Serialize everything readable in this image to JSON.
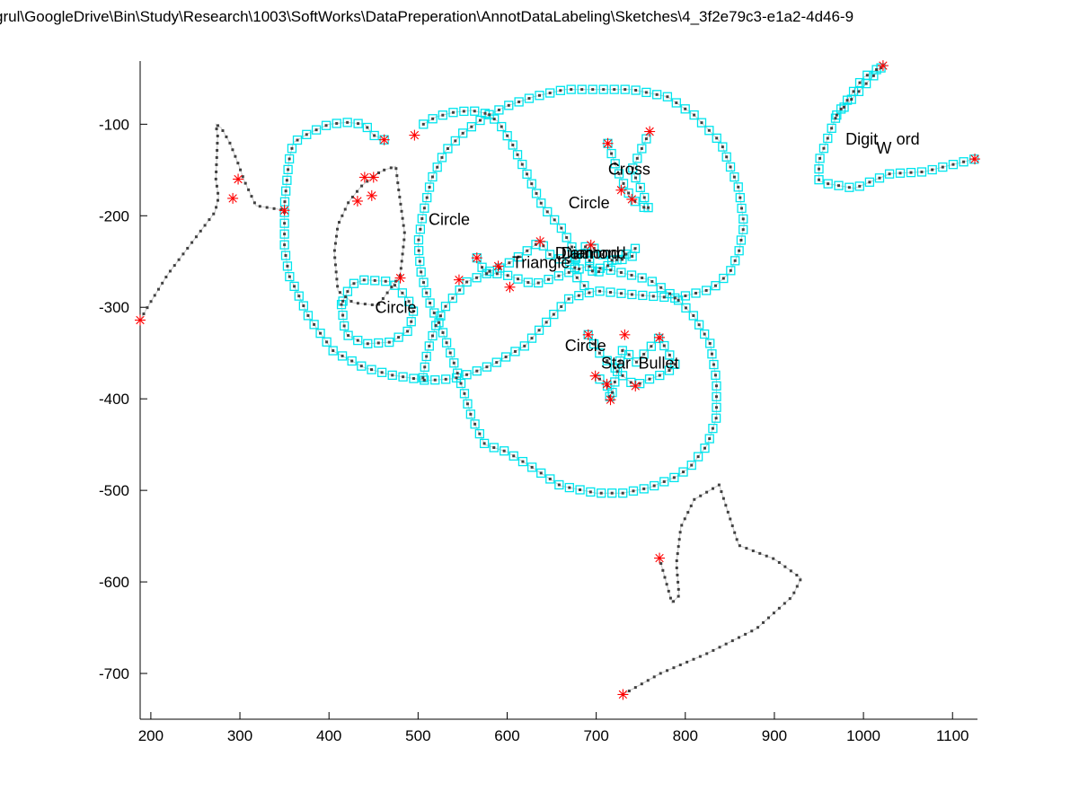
{
  "chart_data": {
    "type": "scatter",
    "title": "grul\\GoogleDrive\\Bin\\Study\\Research\\1003\\SoftWorks\\DataPreperation\\AnnotDataLabeling\\Sketches\\4_3f2e79c3-e1a2-4d46-9",
    "xlim": [
      188,
      1128
    ],
    "ylim": [
      -750,
      -31
    ],
    "x_ticks": [
      200,
      300,
      400,
      500,
      600,
      700,
      800,
      900,
      1000,
      1100
    ],
    "y_ticks": [
      -100,
      -200,
      -300,
      -400,
      -500,
      -600,
      -700
    ],
    "grid": false,
    "colors": {
      "points": "#404040",
      "boxes": "#00e5ee",
      "stars": "#ff0000",
      "line": "#c8c8c8"
    },
    "annotations": [
      {
        "text": "Circle",
        "x": 535,
        "y": -210
      },
      {
        "text": "Circle",
        "x": 475,
        "y": -306
      },
      {
        "text": "Circle",
        "x": 692,
        "y": -192
      },
      {
        "text": "Circle",
        "x": 688,
        "y": -348
      },
      {
        "text": "Cross",
        "x": 737,
        "y": -155
      },
      {
        "text": "Triangle",
        "x": 638,
        "y": -257
      },
      {
        "text": "Diamond",
        "x": 690,
        "y": -247
      },
      {
        "text": "Diamond",
        "x": 697,
        "y": -247
      },
      {
        "text": "Star",
        "x": 722,
        "y": -367
      },
      {
        "text": "Bullet",
        "x": 770,
        "y": -367
      },
      {
        "text": "Digit",
        "x": 998,
        "y": -122
      },
      {
        "text": "ord",
        "x": 1050,
        "y": -122
      }
    ],
    "subscript_annotations": [
      {
        "text": "W",
        "x": 1023,
        "y": -132
      }
    ],
    "star_markers": [
      [
        1022,
        -36
      ],
      [
        1125,
        -138
      ],
      [
        462,
        -117
      ],
      [
        496,
        -112
      ],
      [
        440,
        -158
      ],
      [
        450,
        -158
      ],
      [
        298,
        -160
      ],
      [
        292,
        -181
      ],
      [
        432,
        -184
      ],
      [
        448,
        -178
      ],
      [
        350,
        -194
      ],
      [
        188,
        -314
      ],
      [
        566,
        -246
      ],
      [
        546,
        -270
      ],
      [
        603,
        -278
      ],
      [
        637,
        -228
      ],
      [
        590,
        -255
      ],
      [
        713,
        -121
      ],
      [
        694,
        -232
      ],
      [
        728,
        -172
      ],
      [
        760,
        -108
      ],
      [
        740,
        -182
      ],
      [
        691,
        -330
      ],
      [
        699,
        -375
      ],
      [
        732,
        -330
      ],
      [
        712,
        -384
      ],
      [
        771,
        -333
      ],
      [
        716,
        -401
      ],
      [
        744,
        -386
      ],
      [
        730,
        -723
      ],
      [
        771,
        -574
      ],
      [
        480,
        -268
      ]
    ],
    "unboxed_strokes": [
      [
        [
          188,
          -314
        ],
        [
          198,
          -297
        ],
        [
          219,
          -264
        ],
        [
          272,
          -196
        ],
        [
          276,
          -180
        ],
        [
          273,
          -160
        ],
        [
          275,
          -113
        ],
        [
          273,
          -100
        ],
        [
          279,
          -104
        ],
        [
          289,
          -121
        ],
        [
          298,
          -143
        ],
        [
          305,
          -162
        ],
        [
          318,
          -189
        ],
        [
          350,
          -194
        ]
      ],
      [
        [
          462,
          -150
        ],
        [
          475,
          -146
        ],
        [
          478,
          -170
        ],
        [
          485,
          -220
        ],
        [
          480,
          -265
        ],
        [
          455,
          -298
        ],
        [
          427,
          -295
        ],
        [
          410,
          -282
        ],
        [
          406,
          -240
        ],
        [
          410,
          -210
        ],
        [
          422,
          -185
        ],
        [
          436,
          -168
        ],
        [
          452,
          -155
        ],
        [
          462,
          -150
        ]
      ],
      [
        [
          730,
          -723
        ],
        [
          772,
          -700
        ],
        [
          825,
          -678
        ],
        [
          880,
          -651
        ],
        [
          920,
          -616
        ],
        [
          930,
          -596
        ],
        [
          900,
          -575
        ],
        [
          860,
          -560
        ],
        [
          838,
          -494
        ],
        [
          810,
          -510
        ],
        [
          795,
          -540
        ],
        [
          790,
          -580
        ],
        [
          793,
          -615
        ],
        [
          785,
          -623
        ],
        [
          771,
          -574
        ]
      ]
    ],
    "boxed_strokes": [
      [
        [
          970,
          -90
        ],
        [
          1022,
          -36
        ],
        [
          1000,
          -49
        ],
        [
          970,
          -90
        ],
        [
          950,
          -140
        ],
        [
          950,
          -162
        ],
        [
          960,
          -165
        ],
        [
          990,
          -170
        ],
        [
          1030,
          -154
        ],
        [
          1068,
          -152
        ],
        [
          1125,
          -138
        ]
      ],
      [
        [
          462,
          -117
        ],
        [
          450,
          -112
        ],
        [
          440,
          -100
        ],
        [
          420,
          -98
        ],
        [
          400,
          -100
        ],
        [
          377,
          -110
        ],
        [
          360,
          -120
        ],
        [
          355,
          -140
        ],
        [
          350,
          -188
        ],
        [
          350,
          -235
        ],
        [
          355,
          -265
        ],
        [
          365,
          -285
        ],
        [
          377,
          -310
        ],
        [
          387,
          -324
        ],
        [
          405,
          -348
        ],
        [
          440,
          -366
        ],
        [
          470,
          -374
        ],
        [
          510,
          -380
        ],
        [
          540,
          -378
        ],
        [
          560,
          -372
        ],
        [
          585,
          -362
        ],
        [
          620,
          -342
        ],
        [
          650,
          -310
        ],
        [
          670,
          -290
        ],
        [
          700,
          -282
        ],
        [
          740,
          -286
        ],
        [
          790,
          -290
        ],
        [
          830,
          -280
        ],
        [
          850,
          -262
        ],
        [
          860,
          -240
        ],
        [
          866,
          -210
        ],
        [
          860,
          -170
        ],
        [
          840,
          -120
        ],
        [
          810,
          -90
        ],
        [
          780,
          -70
        ],
        [
          740,
          -62
        ],
        [
          700,
          -62
        ],
        [
          665,
          -62
        ],
        [
          630,
          -70
        ],
        [
          600,
          -80
        ],
        [
          575,
          -92
        ],
        [
          550,
          -110
        ],
        [
          530,
          -130
        ],
        [
          515,
          -160
        ],
        [
          505,
          -200
        ],
        [
          500,
          -230
        ],
        [
          503,
          -260
        ],
        [
          508,
          -280
        ],
        [
          515,
          -300
        ],
        [
          525,
          -320
        ],
        [
          540,
          -360
        ],
        [
          553,
          -397
        ],
        [
          560,
          -420
        ],
        [
          575,
          -450
        ],
        [
          600,
          -458
        ],
        [
          630,
          -476
        ],
        [
          660,
          -495
        ],
        [
          700,
          -503
        ],
        [
          730,
          -503
        ],
        [
          760,
          -497
        ],
        [
          790,
          -485
        ],
        [
          805,
          -475
        ],
        [
          825,
          -450
        ],
        [
          835,
          -420
        ],
        [
          835,
          -380
        ],
        [
          828,
          -340
        ],
        [
          810,
          -310
        ],
        [
          790,
          -290
        ],
        [
          760,
          -270
        ],
        [
          720,
          -260
        ],
        [
          690,
          -255
        ],
        [
          660,
          -265
        ],
        [
          630,
          -275
        ],
        [
          600,
          -265
        ],
        [
          580,
          -262
        ],
        [
          555,
          -272
        ],
        [
          545,
          -283
        ],
        [
          530,
          -300
        ],
        [
          520,
          -320
        ],
        [
          510,
          -350
        ],
        [
          505,
          -380
        ],
        [
          500,
          -375
        ]
      ],
      [
        [
          506,
          -100
        ],
        [
          520,
          -92
        ],
        [
          540,
          -87
        ],
        [
          560,
          -85
        ],
        [
          575,
          -88
        ],
        [
          590,
          -97
        ],
        [
          605,
          -120
        ],
        [
          620,
          -150
        ],
        [
          640,
          -190
        ],
        [
          660,
          -212
        ],
        [
          676,
          -240
        ],
        [
          676,
          -265
        ],
        [
          690,
          -280
        ]
      ],
      [
        [
          414,
          -297
        ],
        [
          417,
          -320
        ],
        [
          420,
          -330
        ],
        [
          440,
          -340
        ],
        [
          470,
          -338
        ],
        [
          490,
          -325
        ],
        [
          495,
          -305
        ],
        [
          488,
          -290
        ],
        [
          470,
          -272
        ],
        [
          440,
          -270
        ],
        [
          425,
          -275
        ],
        [
          417,
          -290
        ],
        [
          414,
          -297
        ]
      ],
      [
        [
          566,
          -246
        ],
        [
          575,
          -262
        ],
        [
          590,
          -258
        ],
        [
          605,
          -250
        ],
        [
          620,
          -240
        ],
        [
          637,
          -228
        ],
        [
          650,
          -245
        ],
        [
          670,
          -250
        ],
        [
          690,
          -232
        ],
        [
          694,
          -232
        ],
        [
          700,
          -238
        ],
        [
          720,
          -250
        ],
        [
          740,
          -245
        ],
        [
          745,
          -235
        ],
        [
          720,
          -250
        ],
        [
          697,
          -265
        ],
        [
          690,
          -240
        ],
        [
          670,
          -250
        ]
      ],
      [
        [
          713,
          -121
        ],
        [
          720,
          -140
        ],
        [
          728,
          -160
        ],
        [
          740,
          -182
        ],
        [
          760,
          -195
        ],
        [
          750,
          -170
        ],
        [
          740,
          -150
        ],
        [
          760,
          -108
        ]
      ],
      [
        [
          691,
          -330
        ],
        [
          705,
          -352
        ],
        [
          720,
          -365
        ],
        [
          730,
          -375
        ],
        [
          744,
          -386
        ],
        [
          755,
          -380
        ],
        [
          770,
          -375
        ],
        [
          790,
          -365
        ],
        [
          771,
          -333
        ],
        [
          745,
          -360
        ],
        [
          730,
          -345
        ],
        [
          716,
          -401
        ],
        [
          712,
          -384
        ],
        [
          699,
          -375
        ]
      ]
    ],
    "xlabel": "",
    "ylabel": ""
  }
}
